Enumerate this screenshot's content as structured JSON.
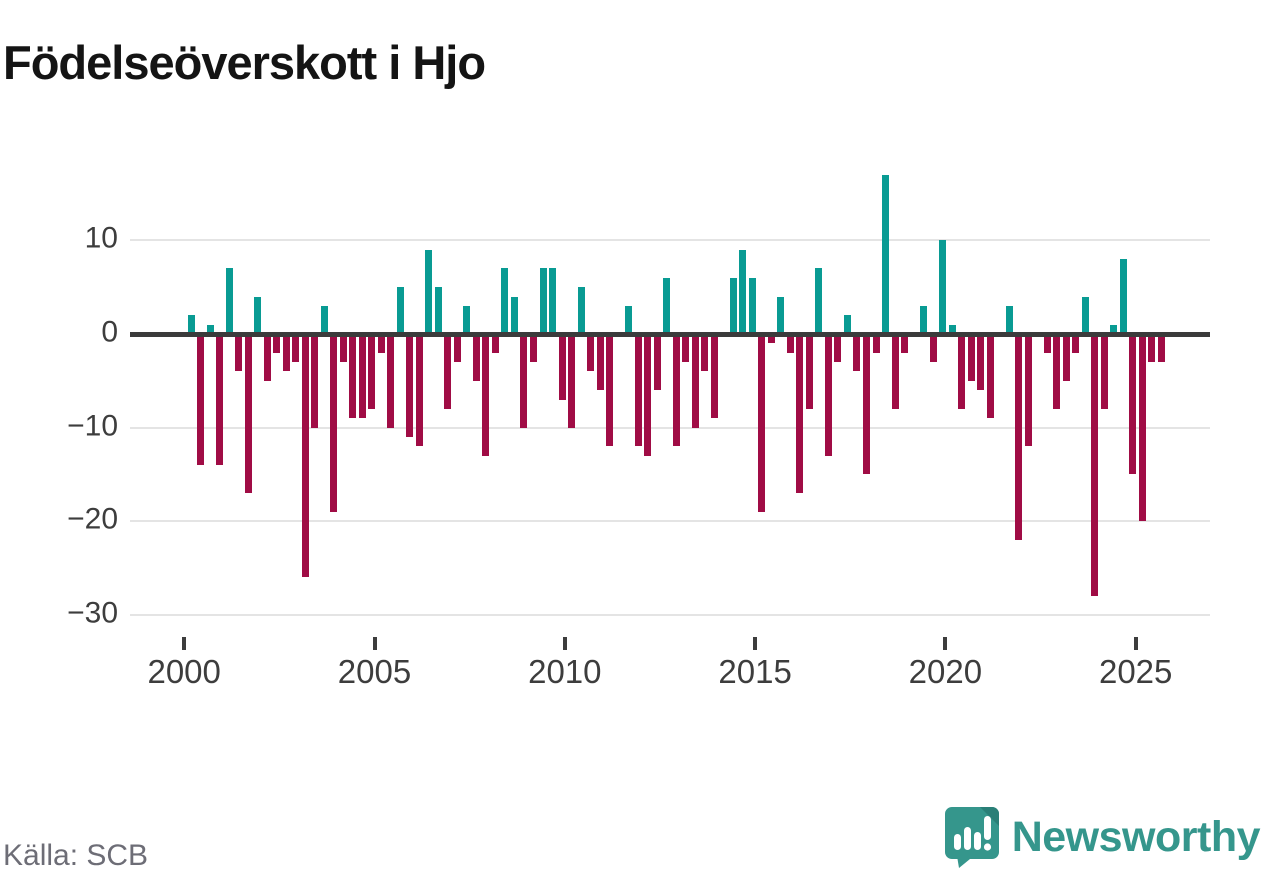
{
  "title": "Födelseöverskott i Hjo",
  "source": "Källa: SCB",
  "brand": "Newsworthy",
  "colors": {
    "positive_bar": "#099b93",
    "negative_bar": "#a00c45",
    "zero_line": "#3b3b3b",
    "gridline": "#e4e4e4",
    "axis_text": "#3d3d3d",
    "source_text": "#6d6d76",
    "brand_teal": "#35968c",
    "brand_teal_dark": "#2a7f77"
  },
  "chart_data": {
    "type": "bar",
    "title": "Födelseöverskott i Hjo",
    "xlabel": "",
    "ylabel": "",
    "x_start_year": 2000,
    "x_start_quarter": 1,
    "ylim": [
      -30,
      18
    ],
    "grid": "horizontal",
    "legend": "none",
    "y_ticks": [
      {
        "label": "10",
        "value": 10
      },
      {
        "label": "0",
        "value": 0
      },
      {
        "label": "−10",
        "value": -10
      },
      {
        "label": "−20",
        "value": -20
      },
      {
        "label": "−30",
        "value": -30
      }
    ],
    "x_ticks": [
      {
        "label": "2000",
        "year": 2000
      },
      {
        "label": "2005",
        "year": 2005
      },
      {
        "label": "2010",
        "year": 2010
      },
      {
        "label": "2015",
        "year": 2015
      },
      {
        "label": "2020",
        "year": 2020
      },
      {
        "label": "2025",
        "year": 2025
      }
    ],
    "years": [
      {
        "year": 2000,
        "values": [
          2,
          -14,
          1,
          -14
        ]
      },
      {
        "year": 2001,
        "values": [
          7,
          -4,
          -17,
          4
        ]
      },
      {
        "year": 2002,
        "values": [
          -5,
          -2,
          -4,
          -3
        ]
      },
      {
        "year": 2003,
        "values": [
          -26,
          -10,
          3,
          -19
        ]
      },
      {
        "year": 2004,
        "values": [
          -3,
          -9,
          -9,
          -8
        ]
      },
      {
        "year": 2005,
        "values": [
          -2,
          -10,
          5,
          -11
        ]
      },
      {
        "year": 2006,
        "values": [
          -12,
          9,
          5,
          -8
        ]
      },
      {
        "year": 2007,
        "values": [
          -3,
          3,
          -5,
          -13
        ]
      },
      {
        "year": 2008,
        "values": [
          -2,
          7,
          4,
          -10
        ]
      },
      {
        "year": 2009,
        "values": [
          -3,
          7,
          7,
          -7
        ]
      },
      {
        "year": 2010,
        "values": [
          -10,
          5,
          -4,
          -6
        ]
      },
      {
        "year": 2011,
        "values": [
          -12,
          0,
          3,
          -12
        ]
      },
      {
        "year": 2012,
        "values": [
          -13,
          -6,
          6,
          -12
        ]
      },
      {
        "year": 2013,
        "values": [
          -3,
          -10,
          -4,
          -9
        ]
      },
      {
        "year": 2014,
        "values": [
          0,
          6,
          9,
          6
        ]
      },
      {
        "year": 2015,
        "values": [
          -19,
          -1,
          4,
          -2
        ]
      },
      {
        "year": 2016,
        "values": [
          -17,
          -8,
          7,
          -13
        ]
      },
      {
        "year": 2017,
        "values": [
          -3,
          2,
          -4,
          -15
        ]
      },
      {
        "year": 2018,
        "values": [
          -2,
          17,
          -8,
          -2
        ]
      },
      {
        "year": 2019,
        "values": [
          0,
          3,
          -3,
          10
        ]
      },
      {
        "year": 2020,
        "values": [
          1,
          -8,
          -5,
          -6
        ]
      },
      {
        "year": 2021,
        "values": [
          -9,
          0,
          3,
          -22
        ]
      },
      {
        "year": 2022,
        "values": [
          -12,
          0,
          -2,
          -8
        ]
      },
      {
        "year": 2023,
        "values": [
          -5,
          -2,
          4,
          -28
        ]
      },
      {
        "year": 2024,
        "values": [
          -8,
          1,
          8,
          -15
        ]
      },
      {
        "year": 2025,
        "values": [
          -20,
          -3,
          -3
        ]
      }
    ]
  }
}
